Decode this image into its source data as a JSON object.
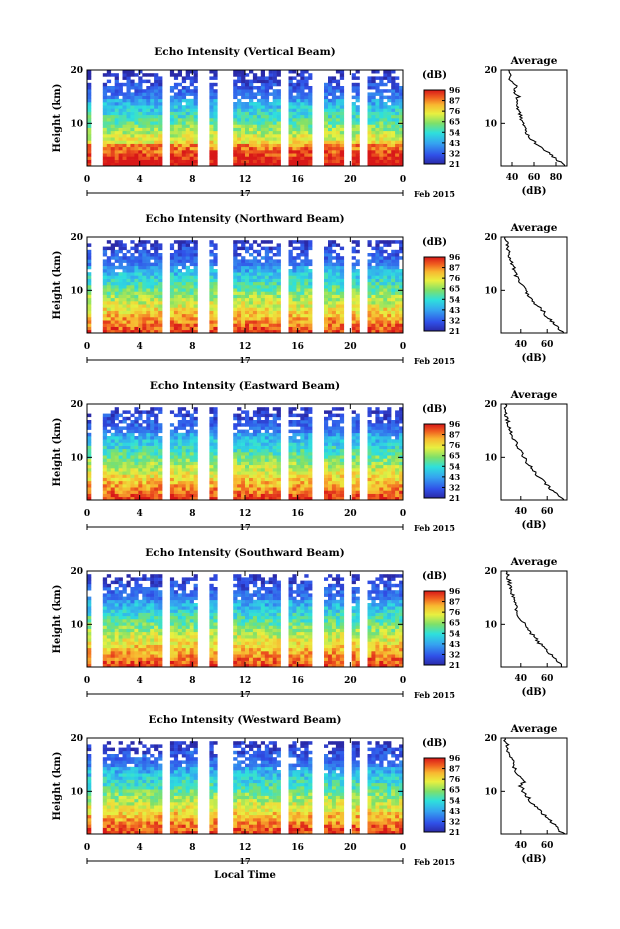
{
  "figure": {
    "x_axis_label": "Local Time",
    "date_label": "Feb 2015",
    "day_label": "17"
  },
  "chart_data": [
    {
      "type": "heatmap",
      "title": "Echo Intensity (Vertical Beam)",
      "ylabel": "Height (km)",
      "xlabel": "Local Time",
      "x_ticks": [
        "0",
        "4",
        "8",
        "12",
        "16",
        "20",
        "0"
      ],
      "y_ticks": [
        "20",
        "10"
      ],
      "xlim": [
        0,
        24
      ],
      "ylim": [
        2,
        20
      ],
      "colorbar": {
        "unit": "(dB)",
        "ticks": [
          "96",
          "87",
          "76",
          "65",
          "54",
          "43",
          "32",
          "21"
        ]
      },
      "gaps_hours": [
        [
          0.4,
          1.0
        ],
        [
          5.6,
          6.1
        ],
        [
          8.5,
          9.1
        ],
        [
          10.0,
          11.0
        ],
        [
          14.7,
          15.1
        ],
        [
          17.2,
          17.8
        ],
        [
          19.4,
          19.9
        ],
        [
          20.8,
          21.3
        ]
      ],
      "average_profile": {
        "title": "Average",
        "xlabel": "(dB)",
        "x_ticks": [
          "40",
          "60",
          "80"
        ],
        "xlim": [
          30,
          90
        ],
        "height_km": [
          2,
          3,
          4,
          5,
          6,
          7,
          8,
          9,
          10,
          11,
          12,
          13,
          14,
          15,
          16,
          17,
          18,
          19,
          20
        ],
        "value_db": [
          88,
          82,
          76,
          70,
          63,
          58,
          54,
          52,
          50,
          48,
          47,
          45,
          43,
          46,
          42,
          44,
          38,
          40,
          37
        ]
      }
    },
    {
      "type": "heatmap",
      "title": "Echo Intensity (Northward Beam)",
      "ylabel": "Height (km)",
      "xlabel": "Local Time",
      "x_ticks": [
        "0",
        "4",
        "8",
        "12",
        "16",
        "20",
        "0"
      ],
      "y_ticks": [
        "20",
        "10"
      ],
      "xlim": [
        0,
        24
      ],
      "ylim": [
        2,
        20
      ],
      "colorbar": {
        "unit": "(dB)",
        "ticks": [
          "96",
          "87",
          "76",
          "65",
          "54",
          "43",
          "32",
          "21"
        ]
      },
      "gaps_hours": [
        [
          0.4,
          1.0
        ],
        [
          5.6,
          6.1
        ],
        [
          8.5,
          9.1
        ],
        [
          10.0,
          11.0
        ],
        [
          14.7,
          15.1
        ],
        [
          17.2,
          17.8
        ],
        [
          19.4,
          19.9
        ],
        [
          20.8,
          21.3
        ]
      ],
      "average_profile": {
        "title": "Average",
        "xlabel": "(dB)",
        "x_ticks": [
          "40",
          "60"
        ],
        "xlim": [
          25,
          75
        ],
        "height_km": [
          2,
          3,
          4,
          5,
          6,
          7,
          8,
          9,
          10,
          11,
          12,
          13,
          14,
          15,
          16,
          17,
          18,
          19,
          20
        ],
        "value_db": [
          72,
          68,
          64,
          60,
          57,
          53,
          49,
          46,
          43,
          41,
          38,
          36,
          35,
          33,
          32,
          31,
          30,
          29,
          28
        ]
      }
    },
    {
      "type": "heatmap",
      "title": "Echo Intensity (Eastward Beam)",
      "ylabel": "Height (km)",
      "xlabel": "Local Time",
      "x_ticks": [
        "0",
        "4",
        "8",
        "12",
        "16",
        "20",
        "0"
      ],
      "y_ticks": [
        "20",
        "10"
      ],
      "xlim": [
        0,
        24
      ],
      "ylim": [
        2,
        20
      ],
      "colorbar": {
        "unit": "(dB)",
        "ticks": [
          "96",
          "87",
          "76",
          "65",
          "54",
          "43",
          "32",
          "21"
        ]
      },
      "gaps_hours": [
        [
          0.4,
          1.0
        ],
        [
          5.6,
          6.1
        ],
        [
          8.5,
          9.1
        ],
        [
          10.0,
          11.0
        ],
        [
          14.7,
          15.1
        ],
        [
          17.2,
          17.8
        ],
        [
          19.4,
          19.9
        ],
        [
          20.8,
          21.3
        ]
      ],
      "average_profile": {
        "title": "Average",
        "xlabel": "(dB)",
        "x_ticks": [
          "40",
          "60"
        ],
        "xlim": [
          25,
          75
        ],
        "height_km": [
          2,
          3,
          4,
          5,
          6,
          7,
          8,
          9,
          10,
          11,
          12,
          13,
          14,
          15,
          16,
          17,
          18,
          19,
          20
        ],
        "value_db": [
          72,
          68,
          63,
          59,
          55,
          51,
          48,
          45,
          42,
          40,
          38,
          36,
          34,
          32,
          31,
          30,
          29,
          28,
          28
        ]
      }
    },
    {
      "type": "heatmap",
      "title": "Echo Intensity (Southward Beam)",
      "ylabel": "Height (km)",
      "xlabel": "Local Time",
      "x_ticks": [
        "0",
        "4",
        "8",
        "12",
        "16",
        "20",
        "0"
      ],
      "y_ticks": [
        "20",
        "10"
      ],
      "xlim": [
        0,
        24
      ],
      "ylim": [
        2,
        20
      ],
      "colorbar": {
        "unit": "(dB)",
        "ticks": [
          "96",
          "87",
          "76",
          "65",
          "54",
          "43",
          "32",
          "21"
        ]
      },
      "gaps_hours": [
        [
          0.4,
          1.0
        ],
        [
          5.6,
          6.1
        ],
        [
          8.5,
          9.1
        ],
        [
          10.0,
          11.0
        ],
        [
          14.7,
          15.1
        ],
        [
          17.2,
          17.8
        ],
        [
          19.4,
          19.9
        ],
        [
          20.8,
          21.3
        ]
      ],
      "average_profile": {
        "title": "Average",
        "xlabel": "(dB)",
        "x_ticks": [
          "40",
          "60"
        ],
        "xlim": [
          25,
          75
        ],
        "height_km": [
          2,
          3,
          4,
          5,
          6,
          7,
          8,
          9,
          10,
          11,
          12,
          13,
          14,
          15,
          16,
          17,
          18,
          19,
          20
        ],
        "value_db": [
          72,
          68,
          64,
          60,
          56,
          52,
          49,
          46,
          43,
          40,
          38,
          36,
          36,
          34,
          33,
          32,
          31,
          30,
          29
        ]
      }
    },
    {
      "type": "heatmap",
      "title": "Echo Intensity (Westward Beam)",
      "ylabel": "Height (km)",
      "xlabel": "Local Time",
      "x_ticks": [
        "0",
        "4",
        "8",
        "12",
        "16",
        "20",
        "0"
      ],
      "y_ticks": [
        "20",
        "10"
      ],
      "xlim": [
        0,
        24
      ],
      "ylim": [
        2,
        20
      ],
      "colorbar": {
        "unit": "(dB)",
        "ticks": [
          "96",
          "87",
          "76",
          "65",
          "54",
          "43",
          "32",
          "21"
        ]
      },
      "gaps_hours": [
        [
          0.4,
          1.0
        ],
        [
          5.6,
          6.1
        ],
        [
          8.5,
          9.1
        ],
        [
          10.0,
          11.0
        ],
        [
          14.7,
          15.1
        ],
        [
          17.2,
          17.8
        ],
        [
          19.4,
          19.9
        ],
        [
          20.8,
          21.3
        ]
      ],
      "average_profile": {
        "title": "Average",
        "xlabel": "(dB)",
        "x_ticks": [
          "40",
          "60"
        ],
        "xlim": [
          25,
          75
        ],
        "height_km": [
          2,
          3,
          4,
          5,
          6,
          7,
          8,
          9,
          10,
          11,
          12,
          13,
          14,
          15,
          16,
          17,
          18,
          19,
          20
        ],
        "value_db": [
          72,
          68,
          64,
          60,
          56,
          52,
          48,
          45,
          42,
          40,
          43,
          38,
          36,
          34,
          33,
          31,
          30,
          29,
          28
        ]
      }
    }
  ]
}
